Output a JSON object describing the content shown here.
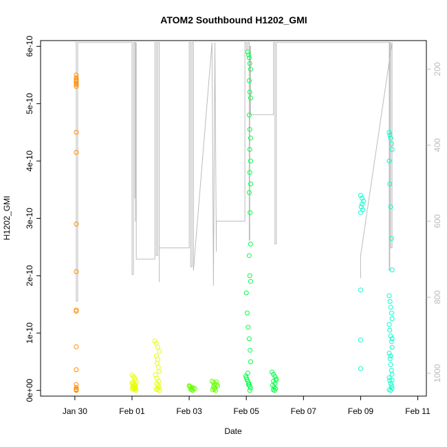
{
  "chart_data": {
    "type": "scatter",
    "title": "ATOM2 Southbound H1202_GMI",
    "xlabel": "Date",
    "ylabel": "H1202_GMI",
    "x_ticks": [
      "Jan 30",
      "Feb 01",
      "Feb 03",
      "Feb 05",
      "Feb 07",
      "Feb 09",
      "Feb 11"
    ],
    "y_ticks": [
      "0e+00",
      "1e-10",
      "2e-10",
      "3e-10",
      "4e-10",
      "5e-10",
      "6e-10"
    ],
    "y_tick_values": [
      0,
      1e-10,
      2e-10,
      3e-10,
      4e-10,
      5e-10,
      6e-10
    ],
    "y2_ticks": [
      "200",
      "400",
      "600",
      "800",
      "1000"
    ],
    "y2_tick_values": [
      200,
      400,
      600,
      800,
      1000
    ],
    "xlim": [
      "2017-01-29",
      "2017-02-11"
    ],
    "xlim_days": [
      -1.2,
      12.3
    ],
    "ylim": [
      -1e-11,
      6.1e-10
    ],
    "y2lim": [
      1060,
      125
    ],
    "x_tick_days": [
      0,
      2,
      4,
      6,
      8,
      10,
      12
    ],
    "series": [
      {
        "color": "#ff8c00",
        "x_days": [
          0.05,
          0.05,
          0.05,
          0.05,
          0.05,
          0.05,
          0.05,
          0.05,
          0.05,
          0.05,
          0.05,
          0.05,
          0.05,
          0.05,
          0.05,
          0.05,
          0.05,
          0.05,
          0.05,
          0.05,
          0.05
        ],
        "y": [
          5.5e-10,
          5.45e-10,
          5.4e-10,
          5.38e-10,
          5.35e-10,
          5.33e-10,
          5.3e-10,
          5.42e-10,
          4.5e-10,
          4.15e-10,
          2.9e-10,
          2.07e-10,
          1.4e-10,
          1.38e-10,
          7.6e-11,
          3.6e-11,
          1e-11,
          5e-12,
          2e-12,
          1e-12,
          0
        ]
      },
      {
        "color": "#e6ff00",
        "x_days": [
          2.0,
          2.05,
          2.1,
          2.12,
          2.15,
          2.0,
          2.05,
          2.1,
          2.03,
          2.08,
          2.13,
          2.0,
          2.06,
          2.11,
          2.14,
          2.02,
          2.07,
          2.12,
          2.04,
          2.09,
          2.8,
          2.85,
          2.9,
          2.95,
          2.85,
          2.9,
          2.88,
          2.92,
          2.95,
          2.82,
          2.87,
          2.93,
          2.86,
          2.91,
          2.94,
          2.89,
          2.84,
          2.9,
          2.96
        ],
        "y": [
          2.7e-11,
          2.4e-11,
          2.1e-11,
          1.8e-11,
          1.5e-11,
          1.2e-11,
          1e-11,
          8e-12,
          6e-12,
          5e-12,
          4e-12,
          3e-12,
          2e-12,
          1e-12,
          0,
          1.4e-11,
          1.1e-11,
          9e-12,
          7e-12,
          4e-12,
          8.6e-11,
          8.2e-11,
          7.5e-11,
          6.8e-11,
          6e-11,
          5.4e-11,
          4.7e-11,
          4e-11,
          3.3e-11,
          2.7e-11,
          2.1e-11,
          1.6e-11,
          1.2e-11,
          9e-12,
          6e-12,
          4e-12,
          2e-12,
          1e-12,
          0
        ]
      },
      {
        "color": "#66ff00",
        "x_days": [
          4.0,
          4.05,
          4.1,
          4.15,
          4.2,
          4.05,
          4.1,
          4.12,
          4.02,
          4.08,
          4.8,
          4.85,
          4.9,
          4.95,
          5.0,
          4.85,
          4.9,
          4.88,
          4.82,
          4.93,
          4.95,
          4.87
        ],
        "y": [
          8e-12,
          6e-12,
          5e-12,
          4e-12,
          3e-12,
          2e-12,
          1e-12,
          0,
          7e-12,
          3e-12,
          1.6e-11,
          1.4e-11,
          1.2e-11,
          1e-11,
          8e-12,
          6e-12,
          4e-12,
          2e-12,
          1e-12,
          0,
          1.5e-11,
          9e-12
        ]
      },
      {
        "color": "#00ff44",
        "x_days": [
          5.98,
          6.0,
          6.02,
          6.05,
          6.08,
          6.1,
          6.12,
          6.15,
          6.05,
          6.08,
          6.1,
          6.12,
          6.15,
          6.1,
          6.12,
          6.15,
          6.1,
          6.12,
          6.15,
          6.12,
          6.15,
          6.12,
          6.15,
          6.1,
          6.13,
          6.15,
          6.1,
          6.12,
          6.15,
          6.0,
          6.03,
          6.06,
          6.1,
          6.13,
          6.15,
          6.05,
          6.08,
          6.12,
          6.9,
          6.95,
          7.0,
          7.05,
          6.95,
          7.0,
          6.92,
          6.97,
          7.02,
          6.94,
          6.99,
          7.04
        ],
        "y": [
          2.5e-11,
          2.2e-11,
          1.9e-11,
          1.6e-11,
          1.3e-11,
          1e-11,
          7e-12,
          4e-12,
          5.9e-10,
          5.85e-10,
          5.8e-10,
          5.7e-10,
          5.6e-10,
          5.4e-10,
          5.2e-10,
          5.1e-10,
          4.8e-10,
          4.55e-10,
          4.4e-10,
          4.2e-10,
          4e-10,
          3.8e-10,
          3.6e-10,
          3.45e-10,
          3.1e-10,
          2.55e-10,
          2.35e-10,
          2e-10,
          1.9e-10,
          1.7e-10,
          1.35e-10,
          1.1e-10,
          9e-11,
          7e-11,
          5e-11,
          3e-11,
          1e-11,
          0,
          3.2e-11,
          2.8e-11,
          2.4e-11,
          2e-11,
          1.6e-11,
          1.2e-11,
          9e-12,
          6e-12,
          3e-12,
          1e-12,
          0,
          1.8e-11
        ]
      },
      {
        "color": "#00ffcc",
        "x_days": [
          10.0,
          10.05,
          10.1,
          10.05,
          10.02,
          10.08,
          10.0,
          10.0,
          10.0,
          10.0,
          11.0,
          11.02,
          11.05,
          11.08,
          11.1,
          11.0,
          11.02,
          11.05,
          11.08,
          11.1,
          11.0,
          11.03,
          11.05,
          11.08,
          11.1,
          11.0,
          11.02,
          11.05,
          11.08,
          11.1,
          11.0,
          11.03,
          11.05,
          11.08,
          11.1,
          11.0,
          11.02,
          11.05,
          11.08,
          11.1,
          11.0,
          11.05,
          11.1,
          11.05,
          11.1
        ],
        "y": [
          3.4e-10,
          3.35e-10,
          3.3e-10,
          3.25e-10,
          3.2e-10,
          3.15e-10,
          3.1e-10,
          1.75e-10,
          8.8e-11,
          3.8e-11,
          4.5e-10,
          4.45e-10,
          4.4e-10,
          4.3e-10,
          4.2e-10,
          4e-10,
          3.6e-10,
          3.2e-10,
          2.65e-10,
          2.1e-10,
          1.65e-10,
          1.55e-10,
          1.45e-10,
          1.35e-10,
          1.25e-10,
          1.15e-10,
          1.05e-10,
          9.5e-11,
          8.5e-11,
          7.5e-11,
          6.5e-11,
          5.5e-11,
          4.5e-11,
          3.5e-11,
          2.8e-11,
          2.2e-11,
          1.7e-11,
          1.2e-11,
          8e-12,
          4e-12,
          1e-12,
          0,
          1.8e-11,
          6e-11,
          9e-11
        ]
      }
    ],
    "line_series": {
      "color": "#bbbbbb",
      "axis": "right",
      "x_days": [
        0.0,
        0.05,
        0.05,
        0.1,
        0.1,
        0.1,
        2.0,
        2.0,
        2.05,
        2.05,
        2.1,
        2.1,
        2.1,
        2.12,
        2.12,
        2.15,
        2.15,
        2.15,
        2.8,
        2.8,
        2.85,
        2.85,
        2.9,
        2.9,
        2.95,
        2.95,
        2.95,
        4.0,
        4.0,
        4.05,
        4.05,
        4.1,
        4.1,
        4.15,
        4.15,
        4.15,
        4.8,
        4.8,
        4.85,
        4.85,
        4.9,
        4.9,
        4.95,
        4.95,
        4.95,
        5.95,
        5.95,
        6.0,
        6.0,
        6.05,
        6.05,
        6.1,
        6.1,
        6.12,
        6.12,
        6.15,
        6.15,
        6.95,
        6.95,
        7.0,
        7.0,
        7.05,
        7.05,
        7.05,
        11.0,
        11.0,
        11.02,
        11.02,
        11.05,
        11.05,
        11.1,
        11.1,
        11.1,
        10.0,
        10.0,
        10.0,
        10.0
      ],
      "y": [
        130,
        130,
        810,
        810,
        130,
        130,
        130,
        740,
        740,
        130,
        130,
        540,
        130,
        130,
        600,
        600,
        130,
        700,
        700,
        130,
        130,
        690,
        690,
        130,
        130,
        760,
        670,
        670,
        130,
        130,
        720,
        720,
        130,
        130,
        730,
        730,
        130,
        130,
        770,
        770,
        130,
        130,
        680,
        680,
        600,
        600,
        130,
        130,
        150,
        150,
        130,
        130,
        650,
        650,
        140,
        140,
        320,
        320,
        130,
        130,
        660,
        660,
        130,
        130,
        130,
        730,
        730,
        130,
        130,
        670,
        670,
        130,
        130,
        690,
        750,
        750,
        700
      ]
    },
    "grid": false,
    "legend": "none"
  }
}
